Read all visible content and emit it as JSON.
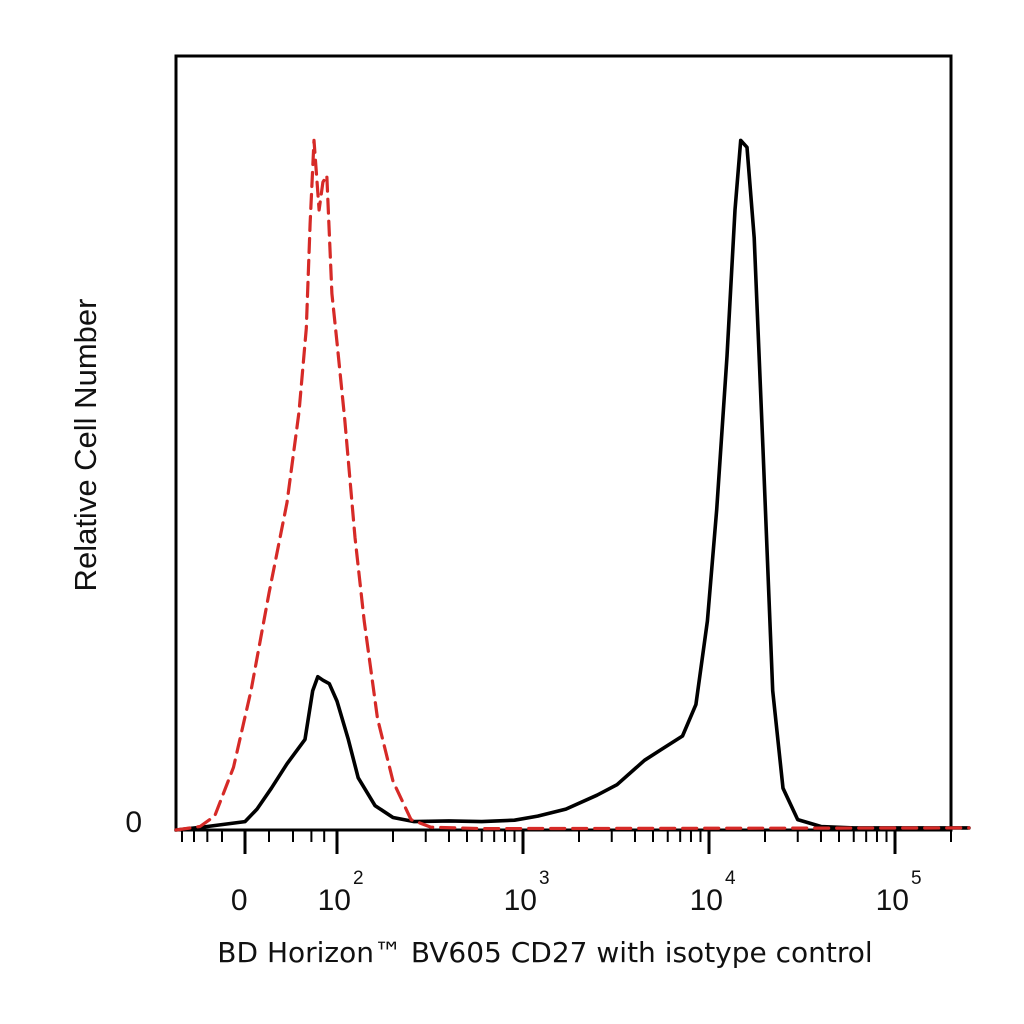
{
  "chart_data": {
    "type": "line",
    "title": "",
    "xlabel": "BD Horizon™ BV605 CD27 with isotype control",
    "ylabel": "Relative Cell Number",
    "x_scale": "biexponential (linear near 0, log above ~10^2)",
    "xlim": [
      -90,
      250000
    ],
    "ylim": [
      0,
      1.0
    ],
    "grid": false,
    "legend": "none",
    "y_tick_labels": [
      {
        "value": 0,
        "label": "0"
      }
    ],
    "x_tick_labels": [
      {
        "value": 0,
        "base": "0",
        "exp": ""
      },
      {
        "value": 100,
        "base": "10",
        "exp": "2"
      },
      {
        "value": 1000,
        "base": "10",
        "exp": "3"
      },
      {
        "value": 10000,
        "base": "10",
        "exp": "4"
      },
      {
        "value": 100000,
        "base": "10",
        "exp": "5"
      }
    ],
    "series": [
      {
        "color": "#000000",
        "dash": "solid",
        "points": [
          [
            -90,
            0.0
          ],
          [
            -40,
            0.005
          ],
          [
            0,
            0.012
          ],
          [
            10,
            0.03
          ],
          [
            22,
            0.06
          ],
          [
            35,
            0.095
          ],
          [
            50,
            0.13
          ],
          [
            62,
            0.2
          ],
          [
            70,
            0.22
          ],
          [
            78,
            0.215
          ],
          [
            88,
            0.21
          ],
          [
            100,
            0.185
          ],
          [
            115,
            0.13
          ],
          [
            130,
            0.075
          ],
          [
            160,
            0.035
          ],
          [
            200,
            0.018
          ],
          [
            260,
            0.012
          ],
          [
            400,
            0.013
          ],
          [
            600,
            0.012
          ],
          [
            900,
            0.014
          ],
          [
            1200,
            0.02
          ],
          [
            1700,
            0.03
          ],
          [
            2500,
            0.05
          ],
          [
            3200,
            0.065
          ],
          [
            4500,
            0.1
          ],
          [
            5500,
            0.115
          ],
          [
            7200,
            0.135
          ],
          [
            8500,
            0.18
          ],
          [
            9800,
            0.3
          ],
          [
            11000,
            0.46
          ],
          [
            12500,
            0.68
          ],
          [
            13800,
            0.89
          ],
          [
            14800,
            0.99
          ],
          [
            16000,
            0.98
          ],
          [
            17500,
            0.85
          ],
          [
            19500,
            0.55
          ],
          [
            22000,
            0.2
          ],
          [
            25000,
            0.06
          ],
          [
            30000,
            0.015
          ],
          [
            40000,
            0.005
          ],
          [
            60000,
            0.003
          ],
          [
            250000,
            0.003
          ]
        ]
      },
      {
        "color": "#d62a27",
        "dash": "dashed",
        "points": [
          [
            -90,
            0.0
          ],
          [
            -50,
            0.005
          ],
          [
            -30,
            0.02
          ],
          [
            -10,
            0.09
          ],
          [
            5,
            0.2
          ],
          [
            20,
            0.34
          ],
          [
            35,
            0.47
          ],
          [
            45,
            0.6
          ],
          [
            52,
            0.72
          ],
          [
            58,
            0.87
          ],
          [
            64,
            0.99
          ],
          [
            72,
            0.89
          ],
          [
            78,
            0.93
          ],
          [
            84,
            0.94
          ],
          [
            92,
            0.77
          ],
          [
            100,
            0.7
          ],
          [
            110,
            0.59
          ],
          [
            125,
            0.42
          ],
          [
            140,
            0.3
          ],
          [
            165,
            0.16
          ],
          [
            200,
            0.07
          ],
          [
            250,
            0.015
          ],
          [
            320,
            0.004
          ],
          [
            600,
            0.002
          ],
          [
            250000,
            0.003
          ]
        ]
      }
    ]
  }
}
